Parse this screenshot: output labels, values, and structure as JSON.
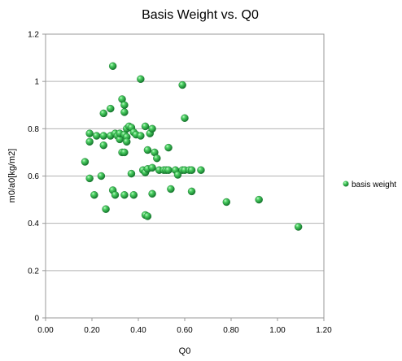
{
  "chart_data": {
    "type": "scatter",
    "title": "Basis Weight vs. Q0",
    "xlabel": "Q0",
    "ylabel": "m0/a0[kg/m2]",
    "xlim": [
      0.0,
      1.2
    ],
    "ylim": [
      0,
      1.2
    ],
    "x_ticks": [
      "0.00",
      "0.20",
      "0.40",
      "0.60",
      "0.80",
      "1.00",
      "1.20"
    ],
    "y_ticks": [
      "0",
      "0.2",
      "0.4",
      "0.6",
      "0.8",
      "1",
      "1.2"
    ],
    "grid": "horizontal",
    "legend_position": "right",
    "marker_color": "#2db84a",
    "series": [
      {
        "name": "basis weight",
        "points": [
          [
            0.17,
            0.66
          ],
          [
            0.19,
            0.78
          ],
          [
            0.19,
            0.745
          ],
          [
            0.19,
            0.59
          ],
          [
            0.21,
            0.52
          ],
          [
            0.22,
            0.77
          ],
          [
            0.24,
            0.6
          ],
          [
            0.25,
            0.77
          ],
          [
            0.25,
            0.73
          ],
          [
            0.25,
            0.865
          ],
          [
            0.26,
            0.46
          ],
          [
            0.28,
            0.885
          ],
          [
            0.28,
            0.77
          ],
          [
            0.29,
            0.54
          ],
          [
            0.29,
            1.065
          ],
          [
            0.3,
            0.78
          ],
          [
            0.3,
            0.52
          ],
          [
            0.31,
            0.77
          ],
          [
            0.32,
            0.755
          ],
          [
            0.32,
            0.78
          ],
          [
            0.33,
            0.925
          ],
          [
            0.33,
            0.7
          ],
          [
            0.34,
            0.9
          ],
          [
            0.34,
            0.87
          ],
          [
            0.34,
            0.775
          ],
          [
            0.34,
            0.7
          ],
          [
            0.34,
            0.52
          ],
          [
            0.35,
            0.765
          ],
          [
            0.35,
            0.745
          ],
          [
            0.35,
            0.8
          ],
          [
            0.36,
            0.81
          ],
          [
            0.37,
            0.805
          ],
          [
            0.37,
            0.61
          ],
          [
            0.38,
            0.785
          ],
          [
            0.38,
            0.52
          ],
          [
            0.39,
            0.775
          ],
          [
            0.41,
            0.77
          ],
          [
            0.41,
            1.01
          ],
          [
            0.42,
            0.625
          ],
          [
            0.43,
            0.435
          ],
          [
            0.43,
            0.81
          ],
          [
            0.43,
            0.615
          ],
          [
            0.44,
            0.43
          ],
          [
            0.44,
            0.63
          ],
          [
            0.44,
            0.71
          ],
          [
            0.45,
            0.78
          ],
          [
            0.46,
            0.8
          ],
          [
            0.46,
            0.635
          ],
          [
            0.46,
            0.525
          ],
          [
            0.47,
            0.7
          ],
          [
            0.48,
            0.675
          ],
          [
            0.49,
            0.625
          ],
          [
            0.51,
            0.625
          ],
          [
            0.52,
            0.625
          ],
          [
            0.53,
            0.625
          ],
          [
            0.53,
            0.72
          ],
          [
            0.54,
            0.545
          ],
          [
            0.56,
            0.625
          ],
          [
            0.57,
            0.605
          ],
          [
            0.59,
            0.625
          ],
          [
            0.59,
            0.985
          ],
          [
            0.6,
            0.625
          ],
          [
            0.6,
            0.845
          ],
          [
            0.62,
            0.625
          ],
          [
            0.63,
            0.535
          ],
          [
            0.63,
            0.625
          ],
          [
            0.67,
            0.625
          ],
          [
            0.78,
            0.49
          ],
          [
            0.92,
            0.5
          ],
          [
            1.09,
            0.385
          ]
        ]
      }
    ]
  }
}
